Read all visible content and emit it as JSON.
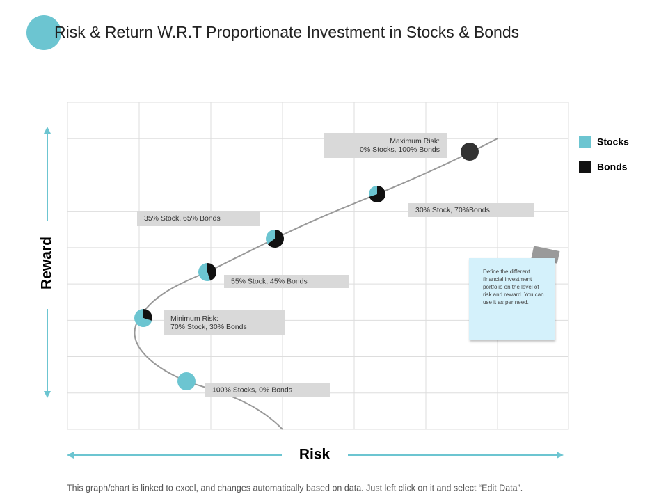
{
  "title": "Risk & Return W.R.T Proportionate Investment in Stocks & Bonds",
  "axes": {
    "x": "Risk",
    "y": "Reward"
  },
  "legend": [
    {
      "name": "Stocks",
      "color": "#6cc5d1"
    },
    {
      "name": "Bonds",
      "color": "#111111"
    }
  ],
  "portfolios": [
    {
      "label": [
        "100% Stocks, 0% Bonds"
      ],
      "stocks": 100,
      "bonds": 0
    },
    {
      "label": [
        "Minimum Risk:",
        "70% Stock, 30% Bonds"
      ],
      "stocks": 70,
      "bonds": 30
    },
    {
      "label": [
        "55% Stock, 45% Bonds"
      ],
      "stocks": 55,
      "bonds": 45
    },
    {
      "label": [
        "35% Stock, 65% Bonds"
      ],
      "stocks": 35,
      "bonds": 65
    },
    {
      "label": [
        "30% Stock, 70%Bonds"
      ],
      "stocks": 30,
      "bonds": 70
    },
    {
      "label": [
        "Maximum Risk:",
        "0% Stocks, 100% Bonds"
      ],
      "stocks": 0,
      "bonds": 100
    }
  ],
  "note": "Define the different financial investment portfolio on the level of risk and reward. You can use it as per need.",
  "footer": "This graph/chart is linked to excel, and changes automatically based on data. Just left click on it and select “Edit Data”."
}
